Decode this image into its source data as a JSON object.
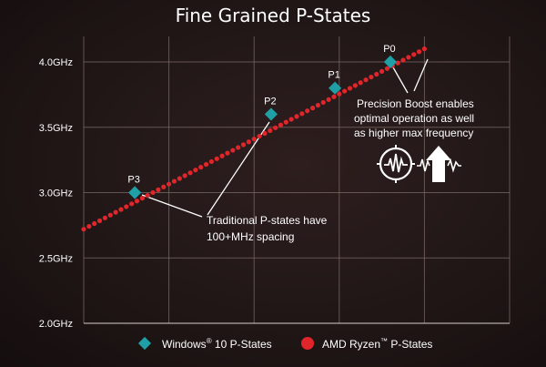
{
  "chart_data": {
    "type": "line",
    "title": "Fine Grained P-States",
    "ylim": [
      2.0,
      4.0
    ],
    "y_ticks": [
      "2.0GHz",
      "2.5GHz",
      "3.0GHz",
      "3.5GHz",
      "4.0GHz"
    ],
    "y_tick_values": [
      2.0,
      2.5,
      3.0,
      3.5,
      4.0
    ],
    "grid": true,
    "series": [
      {
        "name": "AMD Ryzen™ P-States",
        "marker": "circle",
        "color": "#e0262b",
        "style": "dotted-continuous",
        "start": [
          0.0,
          2.72
        ],
        "end": [
          8.0,
          4.1
        ]
      },
      {
        "name": "Windows® 10 P-States",
        "marker": "diamond",
        "color": "#1fa0a6",
        "points": [
          {
            "label": "P3",
            "x": 1.2,
            "y": 3.0
          },
          {
            "label": "P2",
            "x": 4.4,
            "y": 3.6
          },
          {
            "label": "P1",
            "x": 5.9,
            "y": 3.8
          },
          {
            "label": "P0",
            "x": 7.2,
            "y": 4.0
          }
        ]
      }
    ],
    "annotations": [
      {
        "id": "traditional",
        "lines": [
          "Traditional P-states have",
          "100+MHz spacing"
        ]
      },
      {
        "id": "boost",
        "lines": [
          "Precision Boost enables",
          "optimal operation as well",
          "as higher max frequency"
        ]
      }
    ],
    "legend": {
      "placement": "bottom",
      "items": [
        {
          "prefix": "Windows",
          "sup": "®",
          "suffix": " 10 P-States",
          "marker": "diamond",
          "color": "#1fa0a6"
        },
        {
          "prefix": "AMD Ryzen",
          "sup": "™",
          "suffix": " P-States",
          "marker": "circle",
          "color": "#e0262b"
        }
      ]
    }
  },
  "icons": [
    "gauge-wave-icon",
    "frequency-up-icon"
  ]
}
